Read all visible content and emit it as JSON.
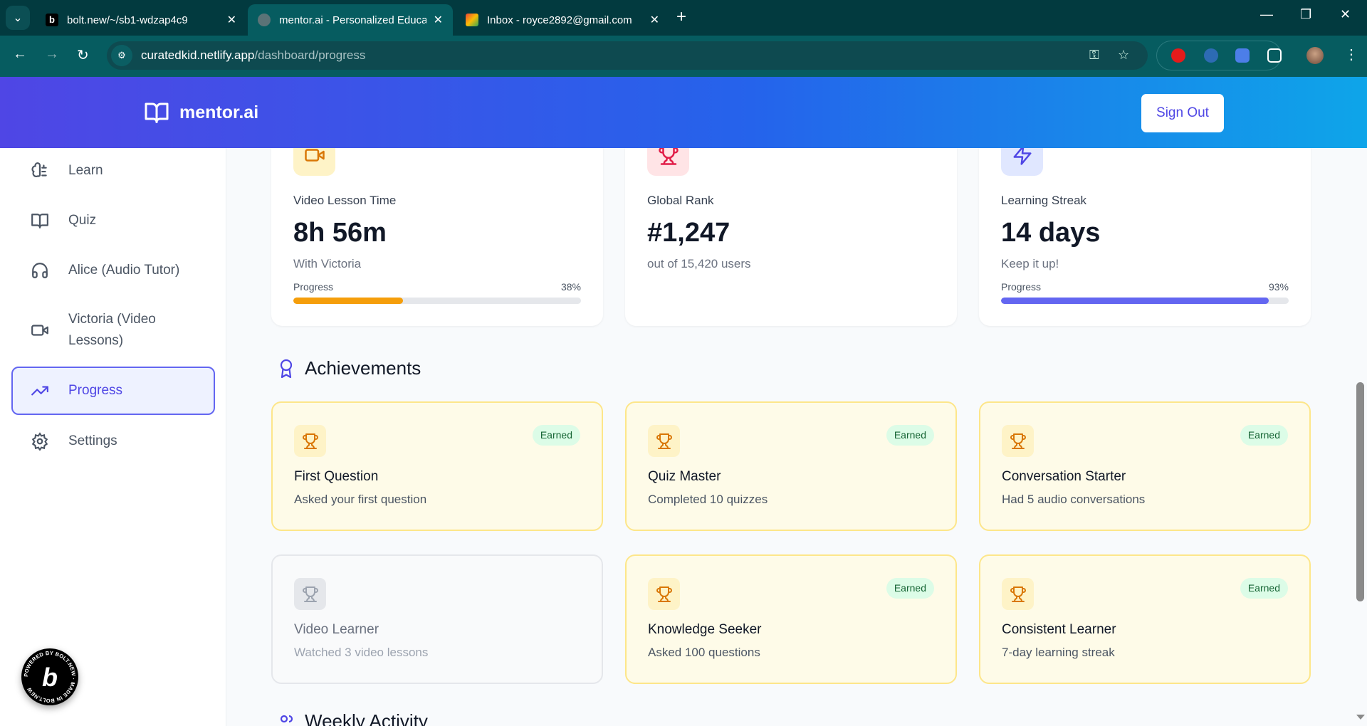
{
  "browser": {
    "tabs": [
      {
        "title": "bolt.new/~/sb1-wdzap4c9",
        "active": false
      },
      {
        "title": "mentor.ai - Personalized Educat",
        "active": true
      },
      {
        "title": "Inbox - royce2892@gmail.com",
        "active": false
      }
    ],
    "url_host": "curatedkid.netlify.app",
    "url_path": "/dashboard/progress"
  },
  "header": {
    "brand": "mentor.ai",
    "sign_out": "Sign Out"
  },
  "sidebar": {
    "items": [
      {
        "label": "Learn",
        "icon": "brain-icon"
      },
      {
        "label": "Quiz",
        "icon": "book-open-icon"
      },
      {
        "label": "Alice (Audio Tutor)",
        "icon": "headphones-icon"
      },
      {
        "label": "Victoria (Video Lessons)",
        "icon": "video-icon"
      },
      {
        "label": "Progress",
        "icon": "trending-up-icon",
        "active": true
      },
      {
        "label": "Settings",
        "icon": "gear-icon"
      }
    ]
  },
  "stats": [
    {
      "label": "Video Lesson Time",
      "value": "8h 56m",
      "sub": "With Victoria",
      "progress_label": "Progress",
      "progress_text": "38%",
      "progress": 38,
      "color": "#f59e0b",
      "icon_bg": "#fef3c7",
      "icon_color": "#d97706",
      "icon": "video-icon"
    },
    {
      "label": "Global Rank",
      "value": "#1,247",
      "sub": "out of 15,420 users",
      "icon_bg": "#ffe4e6",
      "icon_color": "#e11d48",
      "icon": "trophy-icon"
    },
    {
      "label": "Learning Streak",
      "value": "14 days",
      "sub": "Keep it up!",
      "progress_label": "Progress",
      "progress_text": "93%",
      "progress": 93,
      "color": "#6366f1",
      "icon_bg": "#e0e7ff",
      "icon_color": "#4f46e5",
      "icon": "zap-icon"
    }
  ],
  "achievements": {
    "title": "Achievements",
    "items": [
      {
        "title": "First Question",
        "desc": "Asked your first question",
        "badge": "Earned",
        "earned": true
      },
      {
        "title": "Quiz Master",
        "desc": "Completed 10 quizzes",
        "badge": "Earned",
        "earned": true
      },
      {
        "title": "Conversation Starter",
        "desc": "Had 5 audio conversations",
        "badge": "Earned",
        "earned": true
      },
      {
        "title": "Video Learner",
        "desc": "Watched 3 video lessons",
        "earned": false
      },
      {
        "title": "Knowledge Seeker",
        "desc": "Asked 100 questions",
        "badge": "Earned",
        "earned": true
      },
      {
        "title": "Consistent Learner",
        "desc": "7-day learning streak",
        "badge": "Earned",
        "earned": true
      }
    ]
  },
  "weekly": {
    "title": "Weekly Activity"
  },
  "bolt_badge": "POWERED BY BOLT.NEW · MADE IN BOLT.NEW"
}
